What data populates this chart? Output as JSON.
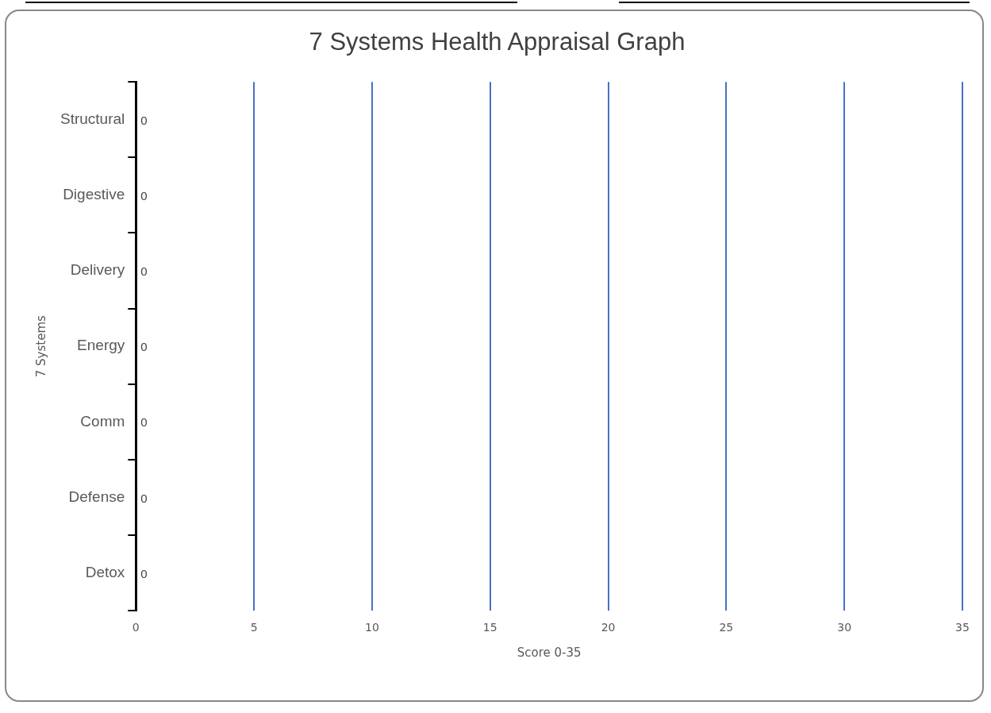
{
  "chart_data": {
    "type": "bar",
    "orientation": "horizontal",
    "title": "7 Systems Health Appraisal Graph",
    "xlabel": "Score 0-35",
    "ylabel": "7 Systems",
    "categories": [
      "Structural",
      "Digestive",
      "Delivery",
      "Energy",
      "Comm",
      "Defense",
      "Detox"
    ],
    "series": [
      {
        "values": [
          0,
          0,
          0,
          0,
          0,
          0,
          0
        ]
      }
    ],
    "xlim": [
      0,
      35
    ],
    "xticks": [
      0,
      5,
      10,
      15,
      20,
      25,
      30,
      35
    ],
    "grid": "x",
    "data_labels": true,
    "legend": false
  }
}
